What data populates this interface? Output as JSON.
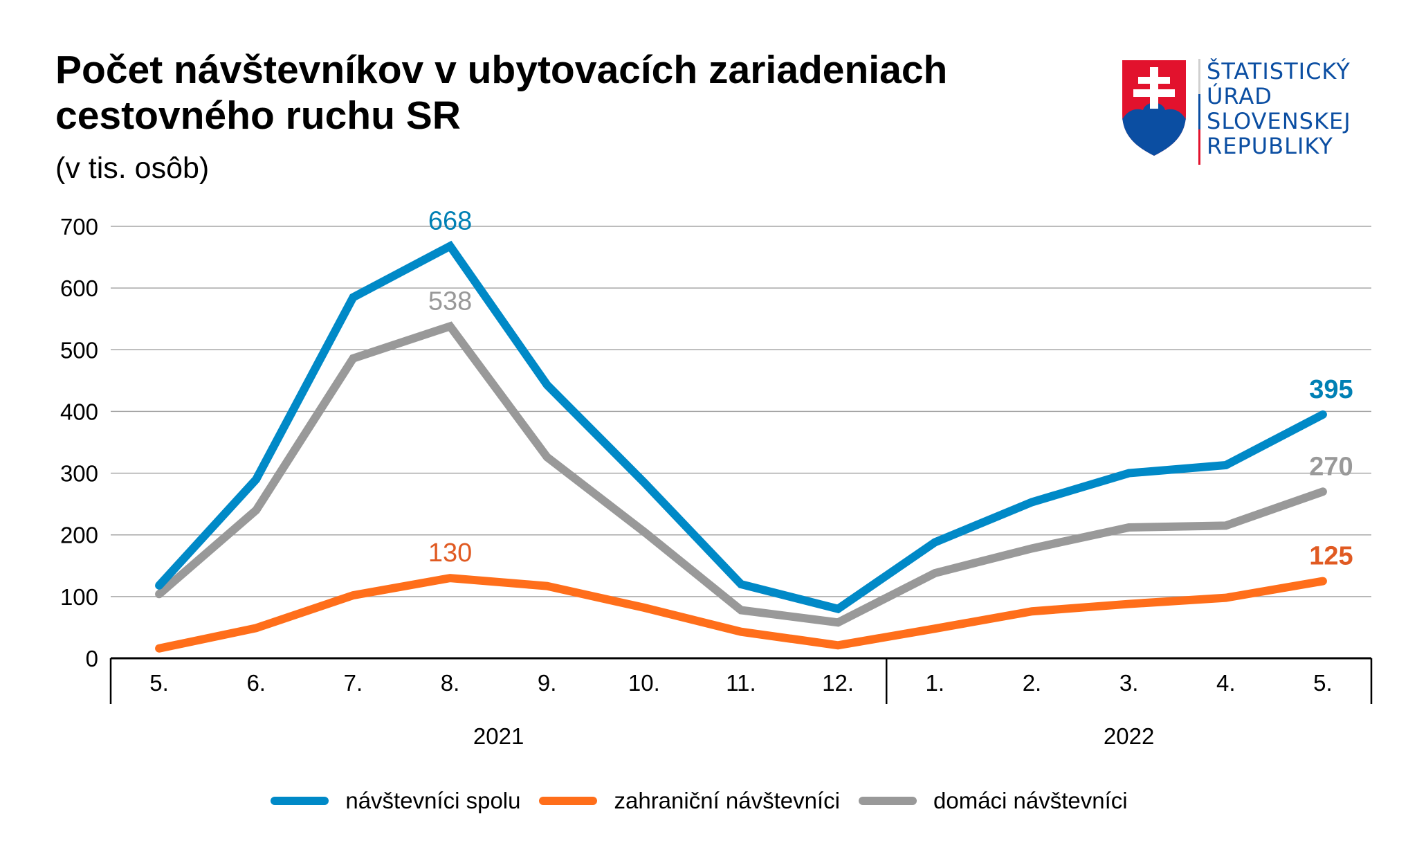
{
  "header": {
    "title_line1": "Počet návštevníkov v ubytovacích zariadeniach",
    "title_line2": "cestovného ruchu SR",
    "subtitle": "(v tis. osôb)"
  },
  "logo": {
    "lines": [
      "ŠTATISTICKÝ",
      "ÚRAD",
      "SLOVENSKEJ",
      "REPUBLIKY"
    ],
    "color": "#0b4ea2",
    "icon": "slovak-coat-of-arms-icon"
  },
  "chart_data": {
    "type": "line",
    "title": "Počet návštevníkov v ubytovacích zariadeniach cestovného ruchu SR",
    "subtitle": "(v tis. osôb)",
    "xlabel": "",
    "ylabel": "",
    "ylim": [
      0,
      700
    ],
    "yticks": [
      0,
      100,
      200,
      300,
      400,
      500,
      600,
      700
    ],
    "grid": true,
    "categories": [
      "5.",
      "6.",
      "7.",
      "8.",
      "9.",
      "10.",
      "11.",
      "12.",
      "1.",
      "2.",
      "3.",
      "4.",
      "5."
    ],
    "groups": [
      {
        "label": "2021",
        "count": 8
      },
      {
        "label": "2022",
        "count": 5
      }
    ],
    "series": [
      {
        "name": "návštevníci spolu",
        "color": "#0089c7",
        "label_color": "#0080b4",
        "values": [
          118,
          290,
          585,
          668,
          443,
          285,
          120,
          80,
          188,
          253,
          300,
          313,
          395
        ],
        "data_labels": [
          {
            "index": 3,
            "text": "668",
            "bold": false
          },
          {
            "index": 12,
            "text": "395",
            "bold": true
          }
        ]
      },
      {
        "name": "zahraniční návštevníci",
        "color": "#ff6e1a",
        "label_color": "#e05a22",
        "values": [
          16,
          49,
          102,
          130,
          117,
          82,
          43,
          21,
          48,
          76,
          88,
          98,
          125
        ],
        "data_labels": [
          {
            "index": 3,
            "text": "130",
            "bold": false
          },
          {
            "index": 12,
            "text": "125",
            "bold": true
          }
        ]
      },
      {
        "name": "domáci návštevníci",
        "color": "#999999",
        "label_color": "#999999",
        "values": [
          104,
          240,
          486,
          538,
          326,
          205,
          78,
          58,
          138,
          178,
          212,
          215,
          270
        ],
        "data_labels": [
          {
            "index": 3,
            "text": "538",
            "bold": false
          },
          {
            "index": 12,
            "text": "270",
            "bold": true
          }
        ]
      }
    ],
    "legend_position": "bottom"
  }
}
